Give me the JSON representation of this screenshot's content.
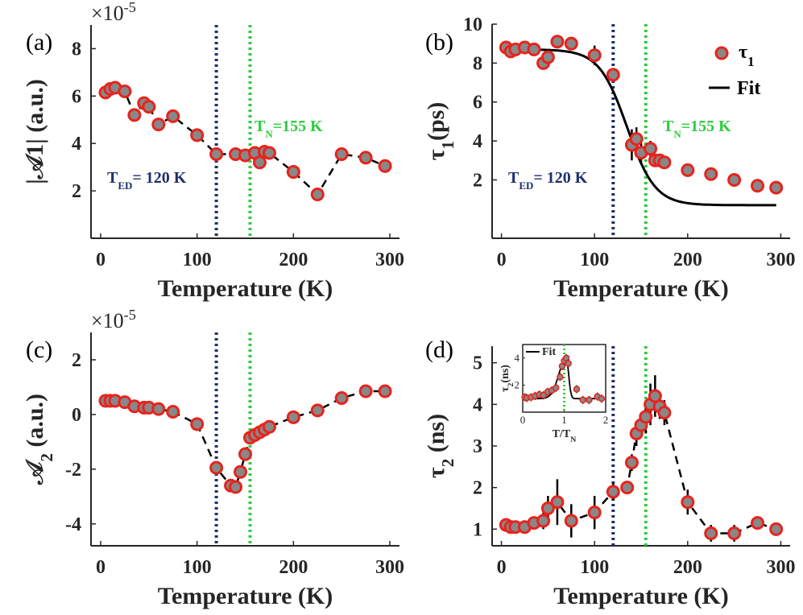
{
  "chart_data": [
    {
      "panel": "(a)",
      "type": "scatter",
      "xlabel": "Temperature (K)",
      "ylabel": "|𝒜1| (a.u.)",
      "multiplier": "×10",
      "multiplier_exp": "-5",
      "xlim": [
        -10,
        310
      ],
      "ylim": [
        0,
        9
      ],
      "xticks": [
        0,
        100,
        200,
        300
      ],
      "yticks": [
        2,
        4,
        6,
        8
      ],
      "vlines": [
        {
          "x": 120,
          "color": "#1f2f6b",
          "label_main": "T",
          "label_sub": "ED",
          "label_rest": "= 120 K"
        },
        {
          "x": 155,
          "color": "#2ecc40",
          "label_main": "T",
          "label_sub": "N",
          "label_rest": "=155 K"
        }
      ],
      "series": [
        {
          "name": "data",
          "x": [
            5,
            10,
            15,
            25,
            35,
            45,
            50,
            60,
            75,
            100,
            120,
            140,
            150,
            160,
            165,
            170,
            175,
            200,
            225,
            250,
            275,
            295
          ],
          "y": [
            6.15,
            6.3,
            6.35,
            6.2,
            5.2,
            5.7,
            5.55,
            4.8,
            5.15,
            4.35,
            3.55,
            3.55,
            3.5,
            3.6,
            3.2,
            3.65,
            3.6,
            2.8,
            1.85,
            3.55,
            3.4,
            3.05
          ],
          "dashed_line": true
        }
      ]
    },
    {
      "panel": "(b)",
      "type": "scatter",
      "xlabel": "Temperature (K)",
      "ylabel_main": "τ",
      "ylabel_sub": "1",
      "ylabel_rest": "(ps)",
      "xlim": [
        -10,
        310
      ],
      "ylim": [
        -1,
        10
      ],
      "xticks": [
        0,
        100,
        200,
        300
      ],
      "yticks": [
        2,
        4,
        6,
        8,
        10
      ],
      "legend": [
        {
          "label_main": "τ",
          "label_sub": "1",
          "kind": "marker"
        },
        {
          "label": "Fit",
          "kind": "line"
        }
      ],
      "vlines": [
        {
          "x": 120,
          "color": "#1f2f6b",
          "label_main": "T",
          "label_sub": "ED",
          "label_rest": "= 120 K"
        },
        {
          "x": 155,
          "color": "#2ecc40",
          "label_main": "T",
          "label_sub": "N",
          "label_rest": "=155 K"
        }
      ],
      "series": [
        {
          "name": "τ1",
          "x": [
            5,
            10,
            15,
            25,
            35,
            45,
            50,
            60,
            75,
            100,
            120,
            140,
            145,
            150,
            160,
            165,
            170,
            175,
            200,
            225,
            250,
            275,
            295
          ],
          "y": [
            8.8,
            8.6,
            8.7,
            8.8,
            8.7,
            8.0,
            8.3,
            9.1,
            9.0,
            8.4,
            7.4,
            3.8,
            4.1,
            3.4,
            3.6,
            3.0,
            3.0,
            2.9,
            2.5,
            2.3,
            2.0,
            1.7,
            1.6
          ],
          "err": [
            0.15,
            0.15,
            0.15,
            0.15,
            0.15,
            0.3,
            0.3,
            0.2,
            0.2,
            0.5,
            0.3,
            0.8,
            0.6,
            0.5,
            0.4,
            0.3,
            0.3,
            0.3,
            0.2,
            0.2,
            0.2,
            0.2,
            0.2
          ]
        },
        {
          "name": "Fit",
          "model": "logistic",
          "params": {
            "a": 0.7,
            "b": 8.0,
            "tc": 135,
            "w": 15
          }
        }
      ]
    },
    {
      "panel": "(c)",
      "type": "scatter",
      "xlabel": "Temperature (K)",
      "ylabel_main": "𝒜",
      "ylabel_sub": "2",
      "ylabel_rest": " (a.u.)",
      "multiplier": "×10",
      "multiplier_exp": "-5",
      "xlim": [
        -10,
        310
      ],
      "ylim": [
        -4.8,
        3
      ],
      "xticks": [
        0,
        100,
        200,
        300
      ],
      "yticks": [
        -4,
        -2,
        0,
        2
      ],
      "vlines": [
        {
          "x": 120,
          "color": "#1f2f6b"
        },
        {
          "x": 155,
          "color": "#2ecc40"
        }
      ],
      "series": [
        {
          "name": "data",
          "x": [
            5,
            10,
            15,
            25,
            35,
            45,
            50,
            60,
            75,
            100,
            120,
            135,
            140,
            145,
            150,
            155,
            160,
            165,
            170,
            175,
            200,
            225,
            250,
            275,
            295
          ],
          "y": [
            0.5,
            0.5,
            0.5,
            0.45,
            0.3,
            0.25,
            0.25,
            0.2,
            0.1,
            -0.35,
            -1.95,
            -2.6,
            -2.65,
            -2.1,
            -1.45,
            -0.85,
            -0.75,
            -0.65,
            -0.55,
            -0.45,
            -0.1,
            0.15,
            0.6,
            0.85,
            0.85
          ],
          "dashed_line": true
        }
      ]
    },
    {
      "panel": "(d)",
      "type": "scatter",
      "xlabel": "Temperature (K)",
      "ylabel_main": "τ",
      "ylabel_sub": "2",
      "ylabel_rest": " (ns)",
      "xlim": [
        -10,
        310
      ],
      "ylim": [
        0.6,
        5.4
      ],
      "xticks": [
        0,
        100,
        200,
        300
      ],
      "yticks": [
        1,
        2,
        3,
        4,
        5
      ],
      "vlines": [
        {
          "x": 120,
          "color": "#1f2f6b"
        },
        {
          "x": 155,
          "color": "#2ecc40"
        }
      ],
      "series": [
        {
          "name": "data",
          "x": [
            5,
            10,
            15,
            25,
            35,
            45,
            50,
            60,
            75,
            100,
            120,
            135,
            140,
            145,
            150,
            155,
            160,
            165,
            170,
            175,
            200,
            225,
            250,
            275,
            295
          ],
          "y": [
            1.1,
            1.05,
            1.05,
            1.05,
            1.15,
            1.2,
            1.5,
            1.65,
            1.2,
            1.4,
            1.9,
            2.0,
            2.6,
            3.3,
            3.5,
            3.7,
            4.0,
            4.2,
            3.95,
            3.8,
            1.65,
            0.9,
            0.9,
            1.15,
            1.0
          ],
          "err": [
            0.08,
            0.08,
            0.08,
            0.15,
            0.15,
            0.2,
            0.3,
            0.55,
            0.4,
            0.4,
            0.2,
            0.1,
            0.2,
            0.3,
            0.3,
            0.4,
            0.5,
            0.5,
            0.3,
            0.3,
            0.3,
            0.2,
            0.2,
            0.1,
            0.1
          ],
          "dashed_line": true
        }
      ],
      "inset": {
        "xlabel": "T/T",
        "xlabel_sub": "N",
        "ylabel_main": "τ",
        "ylabel_sub": "2",
        "ylabel_rest": "(ns)",
        "legend": "Fit",
        "xlim": [
          0,
          2
        ],
        "ylim": [
          0,
          5
        ],
        "xticks": [
          0,
          1,
          2
        ],
        "yticks": [
          2,
          4
        ],
        "vline": {
          "x": 1.0,
          "color": "#2ecc40"
        },
        "x": [
          0.05,
          0.1,
          0.2,
          0.3,
          0.4,
          0.5,
          0.6,
          0.7,
          0.8,
          0.9,
          0.95,
          1.0,
          1.05,
          1.1,
          1.3,
          1.45,
          1.6,
          1.8,
          1.9
        ],
        "y": [
          1.1,
          1.05,
          1.1,
          1.2,
          1.3,
          1.25,
          1.5,
          1.6,
          1.8,
          2.6,
          3.4,
          3.8,
          4.0,
          3.6,
          1.7,
          0.9,
          0.9,
          1.15,
          1.0
        ],
        "fit_params": {
          "base": 1.0,
          "amp": 3.0,
          "x0": 1.05,
          "wl": 0.25,
          "wr": 0.08
        }
      }
    }
  ]
}
